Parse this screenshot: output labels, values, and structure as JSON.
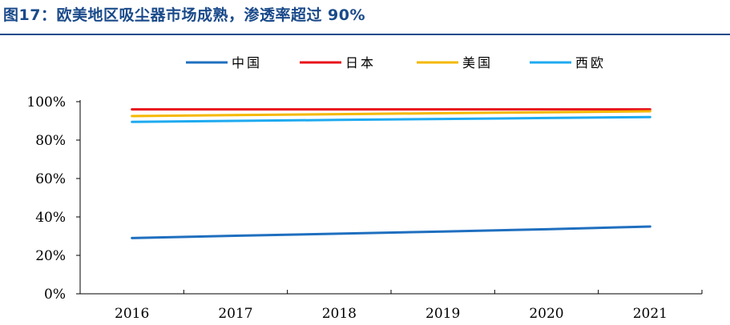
{
  "title": "图17：欧美地区吸尘器市场成熟，渗透率超过 90%",
  "chart_data": {
    "type": "line",
    "title": "",
    "xlabel": "",
    "ylabel": "",
    "categories": [
      "2016",
      "2017",
      "2018",
      "2019",
      "2020",
      "2021"
    ],
    "ylim": [
      0,
      100
    ],
    "y_ticks": [
      "0%",
      "20%",
      "40%",
      "60%",
      "80%",
      "100%"
    ],
    "legend_position": "top-center",
    "grid": false,
    "series": [
      {
        "name": "中国",
        "color": "#1f6fbf",
        "values": [
          29,
          30.2,
          31.3,
          32.4,
          33.6,
          35
        ]
      },
      {
        "name": "日本",
        "color": "#e8101a",
        "values": [
          96,
          96,
          96,
          96,
          96,
          96
        ]
      },
      {
        "name": "美国",
        "color": "#f5b800",
        "values": [
          92.5,
          93,
          93.5,
          94,
          94.5,
          95
        ]
      },
      {
        "name": "西欧",
        "color": "#1eaaf0",
        "values": [
          89.5,
          90,
          90.5,
          91,
          91.5,
          92
        ]
      }
    ]
  }
}
